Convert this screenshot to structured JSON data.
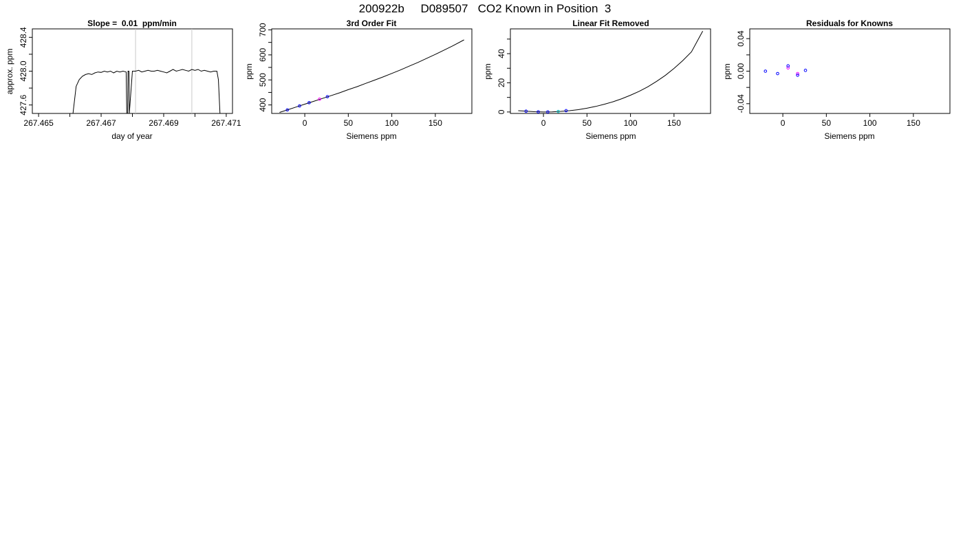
{
  "figure": {
    "title": "200922b     D089507   CO2 Known in Position  3"
  },
  "chart_data": [
    {
      "type": "line",
      "title": "Slope =  0.01  ppm/min",
      "xlabel": "day of year",
      "ylabel": "approx. ppm",
      "xlim": [
        267.4648,
        267.4712
      ],
      "ylim": [
        427.5,
        428.5
      ],
      "xticks": [
        267.465,
        267.466,
        267.467,
        267.468,
        267.469,
        267.47,
        267.471
      ],
      "xtick_labels": [
        "267.465",
        "",
        "267.467",
        "",
        "267.469",
        "",
        "267.471"
      ],
      "yticks": [
        427.6,
        427.8,
        428.0,
        428.2,
        428.4
      ],
      "ytick_labels": [
        "427.6",
        "",
        "428.0",
        "",
        "428.4"
      ],
      "vlines": [
        267.4681,
        267.4699
      ],
      "grid": false,
      "series": [
        {
          "color": "#000000",
          "x": [
            267.4661,
            267.4662,
            267.4663,
            267.4664,
            267.4665,
            267.4666,
            267.4667,
            267.4668,
            267.4669,
            267.467,
            267.4671,
            267.4672,
            267.4673,
            267.4674,
            267.4675,
            267.4676,
            267.4677,
            267.4678,
            267.46782,
            267.46785,
            267.46786,
            267.46789,
            267.4679,
            267.468,
            267.4681,
            267.4682,
            267.4683,
            267.4684,
            267.4685,
            267.4686,
            267.4687,
            267.4688,
            267.4689,
            267.469,
            267.4691,
            267.4692,
            267.4693,
            267.4694,
            267.4695,
            267.4696,
            267.4697,
            267.4698,
            267.4699,
            267.47,
            267.4701,
            267.4702,
            267.4703,
            267.4704,
            267.4705,
            267.4706,
            267.4707,
            267.47075,
            267.4708
          ],
          "y": [
            427.5,
            427.82,
            427.9,
            427.94,
            427.96,
            427.97,
            427.96,
            427.98,
            427.99,
            427.985,
            428.0,
            427.99,
            428.0,
            427.98,
            428.0,
            427.99,
            428.0,
            427.99,
            427.5,
            427.5,
            428.0,
            428.0,
            427.5,
            428.0,
            428.0,
            428.01,
            427.99,
            428.0,
            428.01,
            428.0,
            428.0,
            428.01,
            428.0,
            427.99,
            427.98,
            428.0,
            428.02,
            428.0,
            428.01,
            428.02,
            428.01,
            428.0,
            428.02,
            428.01,
            428.02,
            428.0,
            428.01,
            428.0,
            427.99,
            428.0,
            428.0,
            427.9,
            427.5
          ]
        }
      ]
    },
    {
      "type": "scatter",
      "title": "3rd Order Fit",
      "xlabel": "Siemens ppm",
      "ylabel": "ppm",
      "xlim": [
        -38,
        192
      ],
      "ylim": [
        366,
        704
      ],
      "xticks": [
        0,
        50,
        100,
        150
      ],
      "xtick_labels": [
        "0",
        "50",
        "100",
        "150"
      ],
      "yticks": [
        400,
        450,
        500,
        550,
        600,
        650,
        700
      ],
      "ytick_labels": [
        "400",
        "",
        "500",
        "",
        "600",
        "",
        "700"
      ],
      "grid": false,
      "curve": {
        "color": "#000000",
        "x": [
          -29,
          -20,
          -10,
          0,
          10,
          20,
          30,
          40,
          50,
          60,
          70,
          80,
          90,
          100,
          110,
          120,
          130,
          140,
          150,
          160,
          170,
          183
        ],
        "y": [
          370,
          380,
          391.5,
          403,
          414,
          425.5,
          437,
          448.5,
          461,
          473,
          486,
          499,
          512,
          526,
          540,
          555,
          570,
          586,
          602,
          619,
          636,
          660
        ]
      },
      "points": [
        {
          "x": -20,
          "y": 380,
          "color": "#0000ff"
        },
        {
          "x": -6,
          "y": 396,
          "color": "#0000ff"
        },
        {
          "x": 5,
          "y": 409,
          "color": "#0000ff"
        },
        {
          "x": 17,
          "y": 423,
          "color": "#ff00ff"
        },
        {
          "x": 26,
          "y": 433,
          "color": "#0000ff"
        }
      ]
    },
    {
      "type": "scatter",
      "title": "Linear Fit Removed",
      "xlabel": "Siemens ppm",
      "ylabel": "ppm",
      "xlim": [
        -38,
        192
      ],
      "ylim": [
        -1,
        57
      ],
      "xticks": [
        0,
        50,
        100,
        150
      ],
      "xtick_labels": [
        "0",
        "50",
        "100",
        "150"
      ],
      "yticks": [
        0,
        10,
        20,
        30,
        40,
        50
      ],
      "ytick_labels": [
        "0",
        "",
        "20",
        "",
        "40",
        ""
      ],
      "grid": false,
      "curve": {
        "color": "#000000",
        "x": [
          -29,
          -20,
          -10,
          0,
          10,
          20,
          30,
          40,
          50,
          60,
          70,
          80,
          90,
          100,
          110,
          120,
          130,
          140,
          150,
          160,
          170,
          183
        ],
        "y": [
          0.9,
          0.5,
          0.2,
          0.0,
          0.1,
          0.4,
          0.9,
          1.6,
          2.6,
          3.8,
          5.3,
          7.0,
          9.1,
          11.5,
          14.2,
          17.3,
          21.0,
          25.1,
          29.9,
          35.2,
          41.2,
          55.5
        ]
      },
      "points": [
        {
          "x": -20,
          "y": 0.55,
          "color": "#0000ff"
        },
        {
          "x": -6,
          "y": 0.1,
          "color": "#0000ff"
        },
        {
          "x": 5,
          "y": 0.05,
          "color": "#0000ff"
        },
        {
          "x": 17,
          "y": 0.35,
          "color": "#00c8c8"
        },
        {
          "x": 26,
          "y": 0.9,
          "color": "#0000ff"
        }
      ]
    },
    {
      "type": "scatter",
      "title": "Residuals for Knowns",
      "xlabel": "Siemens ppm",
      "ylabel": "ppm",
      "xlim": [
        -38,
        192
      ],
      "ylim": [
        -0.052,
        0.052
      ],
      "xticks": [
        0,
        50,
        100,
        150
      ],
      "xtick_labels": [
        "0",
        "50",
        "100",
        "150"
      ],
      "yticks": [
        -0.04,
        -0.02,
        0.0,
        0.02,
        0.04
      ],
      "ytick_labels": [
        "-0.04",
        "",
        "0.00",
        "",
        "0.04"
      ],
      "grid": false,
      "points": [
        {
          "x": -20,
          "y": 0.0,
          "color": "#0000ff"
        },
        {
          "x": -6,
          "y": -0.003,
          "color": "#0000ff"
        },
        {
          "x": 6,
          "y": 0.004,
          "color": "#ff00ff"
        },
        {
          "x": 6,
          "y": 0.0065,
          "color": "#0000ff"
        },
        {
          "x": 17,
          "y": -0.003,
          "color": "#ff00ff"
        },
        {
          "x": 17,
          "y": -0.005,
          "color": "#0000ff"
        },
        {
          "x": 26,
          "y": 0.001,
          "color": "#0000ff"
        }
      ]
    }
  ]
}
